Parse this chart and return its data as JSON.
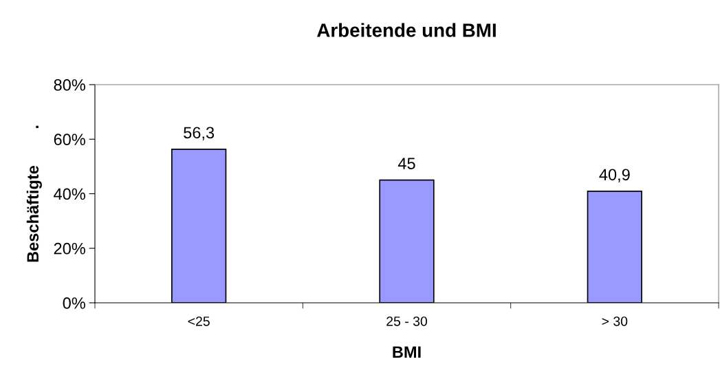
{
  "chart_data": {
    "type": "bar",
    "title": "Arbeitende und BMI",
    "xlabel": "BMI",
    "ylabel": "Beschäftigte        .",
    "categories": [
      "<25",
      "25 - 30",
      "> 30"
    ],
    "values": [
      56.3,
      45,
      40.9
    ],
    "color": "#9999ff",
    "value_labels": [
      "56,3",
      "45",
      "40,9"
    ],
    "ylim": [
      0,
      80
    ],
    "yticks": [
      {
        "value": 0,
        "label": "0%"
      },
      {
        "value": 20,
        "label": "20%"
      },
      {
        "value": 40,
        "label": "40%"
      },
      {
        "value": 60,
        "label": "60%"
      },
      {
        "value": 80,
        "label": "80%"
      }
    ],
    "grid": false,
    "legend": false
  }
}
